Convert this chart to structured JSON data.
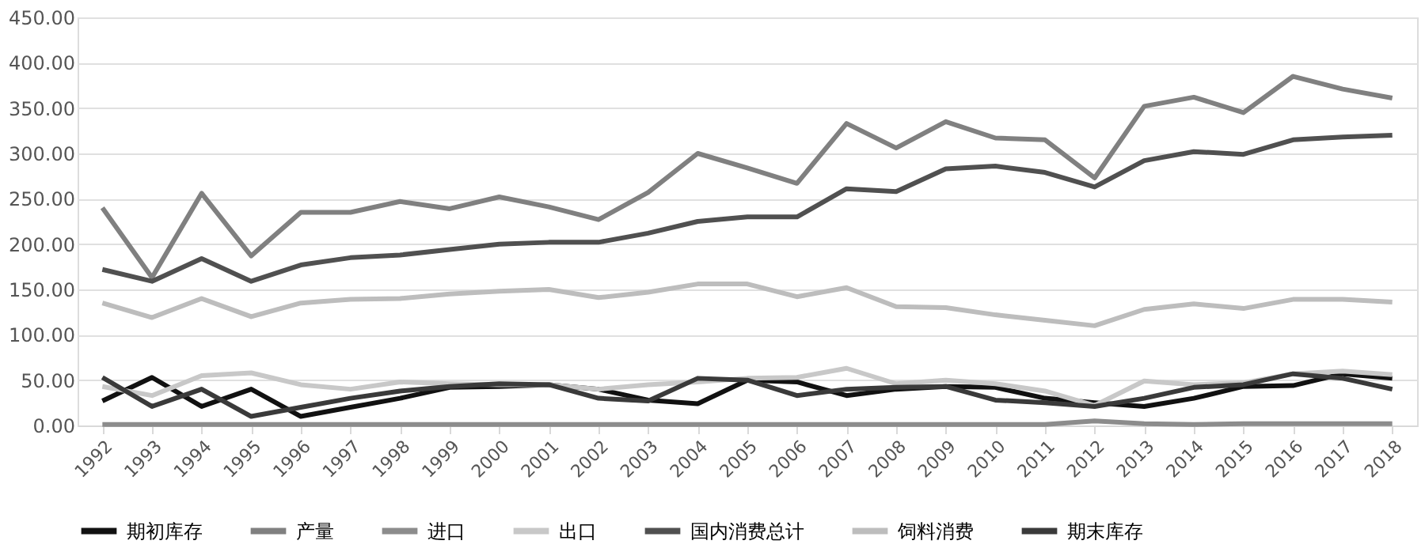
{
  "chart_data": {
    "type": "line",
    "categories": [
      "1992",
      "1993",
      "1994",
      "1995",
      "1996",
      "1997",
      "1998",
      "1999",
      "2000",
      "2001",
      "2002",
      "2003",
      "2004",
      "2005",
      "2006",
      "2007",
      "2008",
      "2009",
      "2010",
      "2011",
      "2012",
      "2013",
      "2014",
      "2015",
      "2016",
      "2017",
      "2018"
    ],
    "series": [
      {
        "name": "期初库存",
        "color": "#111111",
        "values": [
          27,
          53,
          21,
          40,
          10,
          20,
          30,
          42,
          43,
          45,
          40,
          28,
          24,
          50,
          48,
          33,
          40,
          43,
          42,
          30,
          25,
          21,
          30,
          43,
          44,
          57,
          52
        ]
      },
      {
        "name": "产量",
        "color": "#808080",
        "values": [
          240,
          163,
          256,
          187,
          235,
          235,
          247,
          239,
          252,
          241,
          227,
          257,
          300,
          284,
          267,
          333,
          306,
          335,
          317,
          315,
          273,
          352,
          362,
          345,
          385,
          371,
          361
        ]
      },
      {
        "name": "进口",
        "color": "#8c8c8c",
        "values": [
          1,
          1,
          1,
          1,
          1,
          1,
          1,
          1,
          1,
          1,
          1,
          1,
          1,
          1,
          1,
          1,
          1,
          1,
          1,
          1,
          5,
          2,
          1,
          2,
          2,
          2,
          2
        ]
      },
      {
        "name": "出口",
        "color": "#c8c8c8",
        "values": [
          43,
          33,
          55,
          58,
          45,
          40,
          48,
          46,
          45,
          45,
          40,
          45,
          48,
          52,
          53,
          63,
          46,
          50,
          46,
          38,
          22,
          49,
          45,
          47,
          57,
          60,
          56
        ]
      },
      {
        "name": "国内消费总计",
        "color": "#505050",
        "values": [
          172,
          159,
          184,
          159,
          177,
          185,
          188,
          194,
          200,
          202,
          202,
          212,
          225,
          230,
          230,
          261,
          258,
          283,
          286,
          279,
          263,
          292,
          302,
          299,
          315,
          318,
          320
        ]
      },
      {
        "name": "饲料消费",
        "color": "#bdbdbd",
        "values": [
          135,
          119,
          140,
          120,
          135,
          139,
          140,
          145,
          148,
          150,
          141,
          147,
          156,
          156,
          142,
          152,
          131,
          130,
          122,
          116,
          110,
          128,
          134,
          129,
          139,
          139,
          136
        ]
      },
      {
        "name": "期末库存",
        "color": "#3a3a3a",
        "values": [
          53,
          21,
          40,
          10,
          20,
          30,
          38,
          43,
          46,
          45,
          30,
          27,
          52,
          50,
          33,
          40,
          42,
          43,
          28,
          25,
          21,
          30,
          42,
          45,
          57,
          52,
          40
        ]
      }
    ],
    "ylim": [
      0,
      450
    ],
    "yticks": [
      {
        "value": 0,
        "label": "0.00"
      },
      {
        "value": 50,
        "label": "50.00"
      },
      {
        "value": 100,
        "label": "100.00"
      },
      {
        "value": 150,
        "label": "150.00"
      },
      {
        "value": 200,
        "label": "200.00"
      },
      {
        "value": 250,
        "label": "250.00"
      },
      {
        "value": 300,
        "label": "300.00"
      },
      {
        "value": 350,
        "label": "350.00"
      },
      {
        "value": 400,
        "label": "400.00"
      },
      {
        "value": 450,
        "label": "450.00"
      }
    ],
    "grid": "y",
    "legend": "bottom",
    "marker": "none",
    "line_style": "solid"
  }
}
